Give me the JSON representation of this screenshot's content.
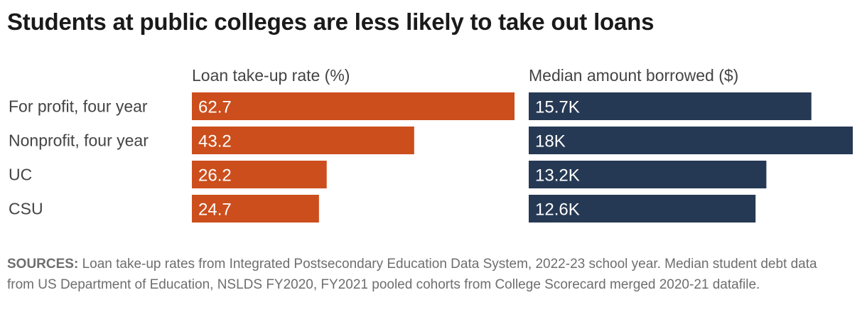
{
  "title": "Students at public colleges are less likely to take out loans",
  "sources": {
    "label": "SOURCES:",
    "text": " Loan take-up rates from Integrated Postsecondary Education Data System, 2022-23 school year. Median student debt data from US Department of Education, NSLDS FY2020, FY2021 pooled cohorts from College Scorecard merged 2020-21 datafile."
  },
  "chart_data": [
    {
      "type": "bar",
      "orientation": "horizontal",
      "title": "Loan take-up rate (%)",
      "categories": [
        "For profit, four year",
        "Nonprofit, four year",
        "UC",
        "CSU"
      ],
      "values": [
        62.7,
        43.2,
        26.2,
        24.7
      ],
      "labels": [
        "62.7",
        "43.2",
        "26.2",
        "24.7"
      ],
      "color": "#cc4e1c",
      "xlim": [
        0,
        62.7
      ]
    },
    {
      "type": "bar",
      "orientation": "horizontal",
      "title": "Median amount borrowed ($)",
      "categories": [
        "For profit, four year",
        "Nonprofit, four year",
        "UC",
        "CSU"
      ],
      "values": [
        15700,
        18000,
        13200,
        12600
      ],
      "labels": [
        "15.7K",
        "18K",
        "13.2K",
        "12.6K"
      ],
      "color": "#263954",
      "xlim": [
        0,
        18000
      ]
    }
  ]
}
